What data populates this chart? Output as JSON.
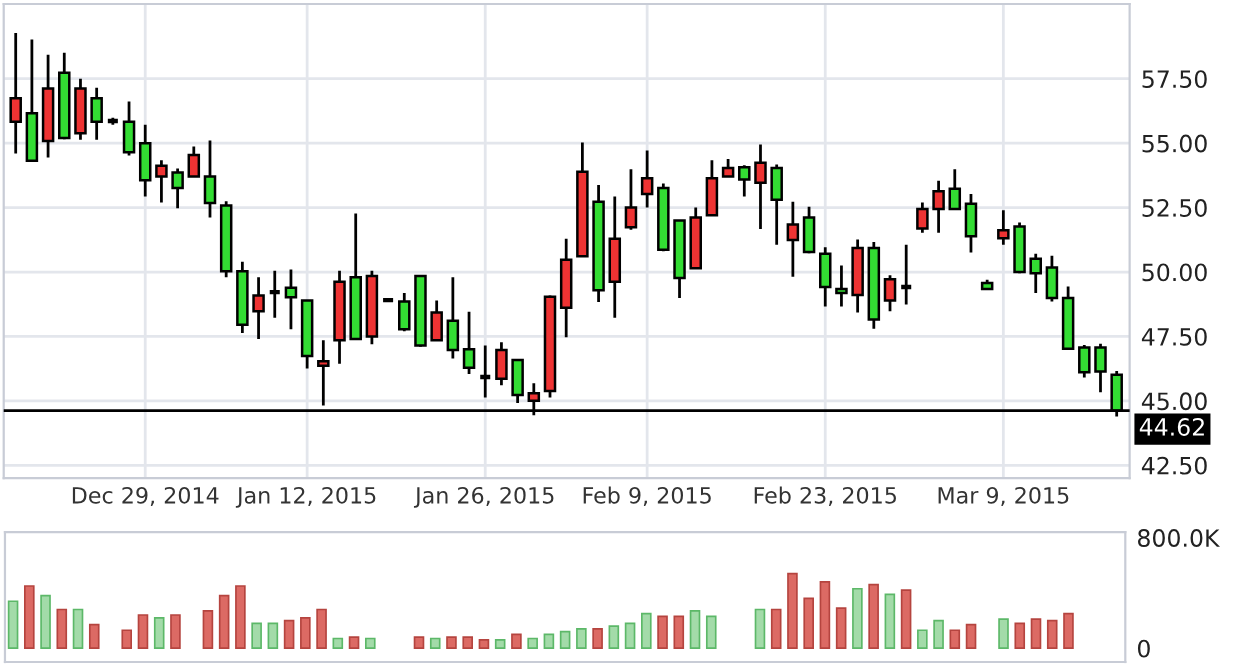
{
  "chart_data": [
    {
      "type": "candlestick",
      "categories": [
        null,
        null,
        null,
        null,
        null,
        null,
        null,
        null,
        "Dec 29, 2014",
        null,
        null,
        null,
        null,
        null,
        null,
        null,
        null,
        null,
        "Jan 12, 2015",
        null,
        null,
        null,
        null,
        null,
        null,
        null,
        null,
        null,
        null,
        "Jan 26, 2015",
        null,
        null,
        null,
        null,
        null,
        null,
        null,
        null,
        null,
        "Feb 9, 2015",
        null,
        null,
        null,
        null,
        null,
        null,
        null,
        null,
        null,
        null,
        "Feb 23, 2015",
        null,
        null,
        null,
        null,
        null,
        null,
        null,
        null,
        null,
        null,
        "Mar 9, 2015",
        null,
        null,
        null,
        null,
        null,
        null,
        null
      ],
      "ohlc": [
        [
          55.83,
          59.27,
          54.6,
          56.74
        ],
        [
          56.16,
          59.02,
          54.3,
          54.32
        ],
        [
          55.08,
          58.43,
          54.44,
          57.12
        ],
        [
          57.73,
          58.51,
          55.15,
          55.2
        ],
        [
          55.38,
          57.5,
          55.13,
          57.12
        ],
        [
          56.74,
          57.15,
          55.13,
          55.83
        ],
        [
          55.86,
          55.99,
          55.71,
          55.86
        ],
        [
          55.83,
          56.62,
          54.52,
          54.65
        ],
        [
          55.0,
          55.71,
          52.93,
          53.56
        ],
        [
          53.71,
          54.34,
          52.7,
          54.12
        ],
        [
          53.86,
          54.02,
          52.47,
          53.26
        ],
        [
          53.71,
          54.87,
          53.71,
          54.54
        ],
        [
          53.71,
          55.1,
          52.12,
          52.68
        ],
        [
          52.58,
          52.75,
          49.8,
          50.03
        ],
        [
          50.03,
          50.4,
          47.63,
          47.95
        ],
        [
          48.48,
          49.8,
          47.4,
          49.09
        ],
        [
          49.22,
          50.05,
          48.23,
          49.22
        ],
        [
          49.39,
          50.1,
          47.78,
          49.02
        ],
        [
          48.89,
          48.89,
          46.26,
          46.74
        ],
        [
          46.36,
          47.35,
          44.82,
          46.54
        ],
        [
          47.35,
          50.05,
          46.44,
          49.62
        ],
        [
          49.8,
          52.27,
          47.4,
          47.4
        ],
        [
          47.5,
          50.05,
          47.2,
          49.85
        ],
        [
          48.91,
          48.99,
          48.84,
          48.91
        ],
        [
          48.86,
          49.19,
          47.7,
          47.78
        ],
        [
          49.85,
          49.85,
          47.1,
          47.15
        ],
        [
          47.35,
          48.89,
          47.35,
          48.43
        ],
        [
          48.11,
          49.8,
          46.64,
          46.97
        ],
        [
          47.0,
          48.46,
          46.04,
          46.29
        ],
        [
          45.93,
          47.15,
          45.13,
          45.93
        ],
        [
          45.86,
          47.27,
          45.61,
          46.97
        ],
        [
          46.59,
          46.62,
          44.92,
          45.23
        ],
        [
          45.0,
          45.68,
          44.44,
          45.3
        ],
        [
          45.38,
          49.09,
          45.13,
          49.04
        ],
        [
          48.61,
          51.29,
          47.47,
          50.48
        ],
        [
          50.61,
          55.03,
          50.61,
          53.89
        ],
        [
          52.73,
          53.38,
          48.84,
          49.29
        ],
        [
          49.62,
          52.93,
          48.23,
          51.29
        ],
        [
          51.74,
          53.99,
          51.64,
          52.5
        ],
        [
          53.03,
          54.72,
          52.5,
          53.64
        ],
        [
          53.26,
          53.43,
          50.81,
          50.86
        ],
        [
          52.0,
          52.0,
          48.99,
          49.77
        ],
        [
          50.15,
          52.5,
          50.15,
          52.12
        ],
        [
          52.2,
          54.34,
          52.2,
          53.64
        ],
        [
          53.71,
          54.39,
          53.71,
          54.04
        ],
        [
          54.07,
          54.14,
          52.93,
          53.59
        ],
        [
          53.46,
          54.95,
          51.67,
          54.24
        ],
        [
          54.04,
          54.17,
          51.06,
          52.8
        ],
        [
          51.24,
          52.73,
          49.82,
          51.84
        ],
        [
          52.12,
          52.53,
          50.73,
          50.78
        ],
        [
          50.71,
          50.96,
          48.66,
          49.42
        ],
        [
          49.34,
          50.25,
          48.66,
          49.19
        ],
        [
          49.11,
          51.26,
          48.43,
          50.93
        ],
        [
          50.93,
          51.16,
          47.8,
          48.16
        ],
        [
          48.89,
          49.87,
          48.48,
          49.72
        ],
        [
          49.42,
          51.06,
          48.74,
          49.42
        ],
        [
          51.69,
          52.7,
          51.52,
          52.45
        ],
        [
          52.45,
          53.54,
          51.52,
          53.13
        ],
        [
          53.23,
          53.99,
          52.45,
          52.45
        ],
        [
          52.65,
          53.03,
          50.76,
          51.39
        ],
        [
          49.57,
          49.7,
          49.34,
          49.34
        ],
        [
          51.31,
          52.4,
          51.06,
          51.62
        ],
        [
          51.77,
          51.92,
          49.95,
          50.0
        ],
        [
          50.51,
          50.71,
          49.19,
          49.95
        ],
        [
          50.18,
          50.63,
          48.86,
          48.99
        ],
        [
          48.99,
          49.44,
          47.02,
          47.02
        ],
        [
          47.07,
          47.17,
          45.91,
          46.11
        ],
        [
          47.07,
          47.22,
          45.33,
          46.14
        ],
        [
          46.01,
          46.16,
          44.39,
          44.62
        ]
      ],
      "colors": [
        "#ee3333",
        "#33dd33",
        "#ee3333",
        "#33dd33",
        "#ee3333",
        "#33dd33",
        "#000000",
        "#33dd33",
        "#33dd33",
        "#ee3333",
        "#33dd33",
        "#ee3333",
        "#33dd33",
        "#33dd33",
        "#33dd33",
        "#ee3333",
        "#000000",
        "#33dd33",
        "#33dd33",
        "#ee3333",
        "#ee3333",
        "#33dd33",
        "#ee3333",
        "#000000",
        "#33dd33",
        "#33dd33",
        "#ee3333",
        "#33dd33",
        "#33dd33",
        "#000000",
        "#ee3333",
        "#33dd33",
        "#ee3333",
        "#ee3333",
        "#ee3333",
        "#ee3333",
        "#33dd33",
        "#ee3333",
        "#ee3333",
        "#ee3333",
        "#33dd33",
        "#33dd33",
        "#ee3333",
        "#ee3333",
        "#ee3333",
        "#33dd33",
        "#ee3333",
        "#33dd33",
        "#ee3333",
        "#33dd33",
        "#33dd33",
        "#33dd33",
        "#ee3333",
        "#33dd33",
        "#ee3333",
        "#000000",
        "#ee3333",
        "#ee3333",
        "#33dd33",
        "#33dd33",
        "#33dd33",
        "#ee3333",
        "#33dd33",
        "#33dd33",
        "#33dd33",
        "#33dd33",
        "#33dd33",
        "#33dd33",
        "#33dd33"
      ],
      "ylim": [
        42.0,
        60.4
      ],
      "yticks": [
        {
          "value": 42.5,
          "label": "42.50"
        },
        {
          "value": 45,
          "label": "45.00"
        },
        {
          "value": 47.5,
          "label": "47.50"
        },
        {
          "value": 50,
          "label": "50.00"
        },
        {
          "value": 52.5,
          "label": "52.50"
        },
        {
          "value": 55,
          "label": "55.00"
        },
        {
          "value": 57.5,
          "label": "57.50"
        }
      ],
      "ref_lines": [
        {
          "axis": "y",
          "value": 44.62,
          "label": "44.62",
          "color": "#000000"
        }
      ],
      "grid": true
    },
    {
      "type": "bar",
      "categories": [
        null,
        null,
        null,
        null,
        null,
        null,
        null,
        null,
        null,
        null,
        null,
        null,
        null,
        null,
        null,
        null,
        null,
        null,
        null,
        null,
        null,
        null,
        null,
        null,
        null,
        null,
        null,
        null,
        null,
        null,
        null,
        null,
        null,
        null,
        null,
        null,
        null,
        null,
        null,
        null,
        null,
        null,
        null,
        null,
        null,
        null,
        null,
        null,
        null,
        null,
        null,
        null,
        null,
        null,
        null,
        null,
        null,
        null,
        null,
        null,
        null,
        null,
        null,
        null,
        null,
        null,
        null,
        null,
        null
      ],
      "values": [
        340000,
        450000,
        380000,
        280000,
        280000,
        170000,
        null,
        130000,
        240000,
        220000,
        240000,
        null,
        270000,
        380000,
        450000,
        180000,
        180000,
        200000,
        220000,
        280000,
        70000,
        80000,
        70000,
        null,
        null,
        80000,
        70000,
        80000,
        80000,
        60000,
        60000,
        100000,
        70000,
        100000,
        120000,
        140000,
        140000,
        160000,
        180000,
        250000,
        230000,
        230000,
        270000,
        230000,
        null,
        null,
        280000,
        280000,
        540000,
        360000,
        480000,
        290000,
        430000,
        460000,
        390000,
        420000,
        130000,
        200000,
        130000,
        170000,
        null,
        210000,
        180000,
        210000,
        200000,
        250000,
        null,
        null,
        null
      ],
      "colors": [
        "#a3dba9",
        "#dc6a64",
        "#a3dba9",
        "#dc6a64",
        "#a3dba9",
        "#dc6a64",
        null,
        "#dc6a64",
        "#dc6a64",
        "#a3dba9",
        "#dc6a64",
        null,
        "#dc6a64",
        "#dc6a64",
        "#dc6a64",
        "#a3dba9",
        "#a3dba9",
        "#dc6a64",
        "#dc6a64",
        "#dc6a64",
        "#a3dba9",
        "#dc6a64",
        "#a3dba9",
        null,
        null,
        "#dc6a64",
        "#a3dba9",
        "#dc6a64",
        "#dc6a64",
        "#dc6a64",
        "#a3dba9",
        "#dc6a64",
        "#a3dba9",
        "#a3dba9",
        "#a3dba9",
        "#a3dba9",
        "#dc6a64",
        "#a3dba9",
        "#a3dba9",
        "#a3dba9",
        "#dc6a64",
        "#dc6a64",
        "#a3dba9",
        "#a3dba9",
        null,
        null,
        "#a3dba9",
        "#dc6a64",
        "#dc6a64",
        "#dc6a64",
        "#dc6a64",
        "#dc6a64",
        "#a3dba9",
        "#dc6a64",
        "#a3dba9",
        "#dc6a64",
        "#a3dba9",
        "#a3dba9",
        "#dc6a64",
        "#dc6a64",
        null,
        "#a3dba9",
        "#dc6a64",
        "#dc6a64",
        "#dc6a64",
        "#dc6a64",
        null,
        null,
        null
      ],
      "ylim": [
        -100000,
        840000
      ],
      "yticks": [
        {
          "value": 800000,
          "label": "800.0K"
        },
        0
      ],
      "tick_labels": "y"
    }
  ]
}
